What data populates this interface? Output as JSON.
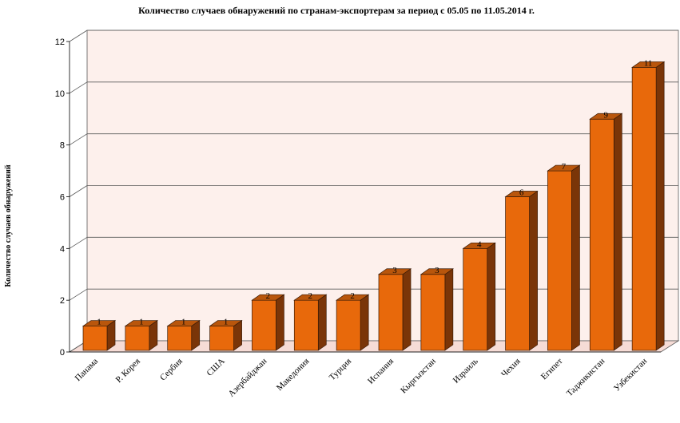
{
  "chart_data": {
    "type": "bar",
    "title": "Количество случаев обнаружений по странам-экспортерам за период с 05.05 по 11.05.2014 г.",
    "xlabel": "",
    "ylabel": "Количество случаев обнаружений",
    "ylim": [
      0,
      12
    ],
    "yticks": [
      0,
      2,
      4,
      6,
      8,
      10,
      12
    ],
    "grid": true,
    "categories": [
      "Панама",
      "Р. Корея",
      "Сербия",
      "США",
      "Азербайджан",
      "Македония",
      "Турция",
      "Испания",
      "Кыргызстан",
      "Израиль",
      "Чехия",
      "Египет",
      "Таджикистан",
      "Узбекистан"
    ],
    "values": [
      1,
      1,
      1,
      1,
      2,
      2,
      2,
      3,
      3,
      4,
      6,
      7,
      9,
      11
    ],
    "colors": {
      "bar_front": "#e8690b",
      "bar_top": "#b9560c",
      "bar_side": "#7a3508",
      "bar_edge": "#3a1a05",
      "plot_back": "#fdf0ec",
      "plot_floor": "#f6dcd6",
      "gridline": "#5a5a5a"
    }
  }
}
